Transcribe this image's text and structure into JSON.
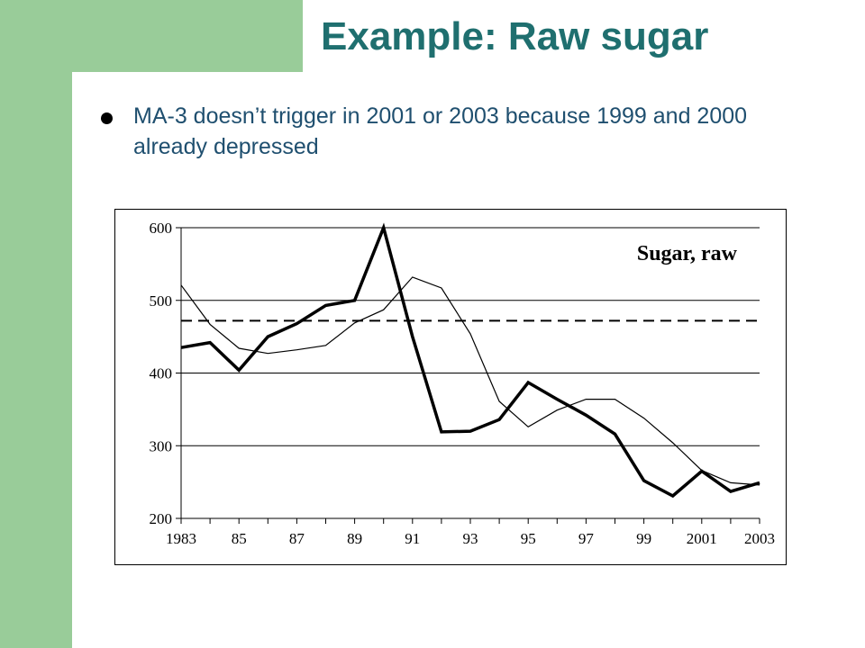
{
  "slide": {
    "title": "Example: Raw sugar",
    "bullet": "MA-3 doesn’t trigger in 2001 or 2003 because 1999 and 2000 already depressed"
  },
  "colors": {
    "accent_green": "#99cc99",
    "title_teal": "#1f6f6f",
    "text_blue": "#1f4f6f"
  },
  "chart_data": {
    "type": "line",
    "title": "Sugar, raw",
    "xlabel": "",
    "ylabel": "",
    "x": [
      1983,
      1984,
      1985,
      1986,
      1987,
      1988,
      1989,
      1990,
      1991,
      1992,
      1993,
      1994,
      1995,
      1996,
      1997,
      1998,
      1999,
      2000,
      2001,
      2002,
      2003
    ],
    "xticklabels": [
      "1983",
      "85",
      "87",
      "89",
      "91",
      "93",
      "95",
      "97",
      "99",
      "2001",
      "2003"
    ],
    "xtick_years": [
      1983,
      1985,
      1987,
      1989,
      1991,
      1993,
      1995,
      1997,
      1999,
      2001,
      2003
    ],
    "yticks": [
      200,
      300,
      400,
      500,
      600
    ],
    "ylim": [
      200,
      600
    ],
    "xlim": [
      1983,
      2003
    ],
    "grid": "horizontal",
    "series": [
      {
        "style": "thick",
        "values": [
          435,
          442,
          404,
          450,
          468,
          493,
          500,
          600,
          450,
          319,
          320,
          336,
          387,
          364,
          342,
          316,
          252,
          231,
          265,
          237,
          249
        ]
      },
      {
        "style": "thin",
        "values": [
          521,
          467,
          434,
          427,
          432,
          438,
          469,
          487,
          532,
          517,
          454,
          361,
          326,
          349,
          364,
          364,
          338,
          304,
          266,
          249,
          246
        ]
      }
    ],
    "reference_line": {
      "style": "dashed",
      "value": 472
    }
  }
}
